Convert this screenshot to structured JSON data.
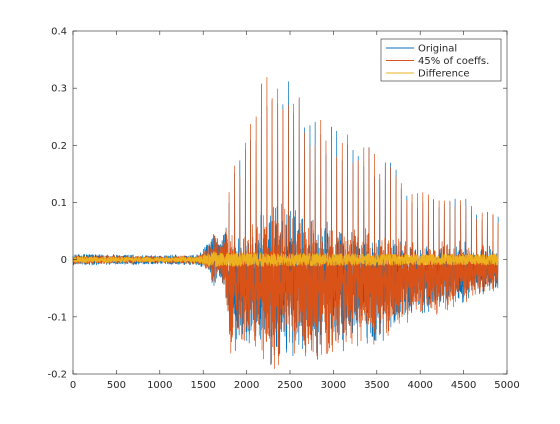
{
  "chart_data": {
    "type": "line",
    "title": "",
    "xlabel": "",
    "ylabel": "",
    "xlim": [
      0,
      5000
    ],
    "ylim": [
      -0.2,
      0.4
    ],
    "x_ticks": [
      0,
      500,
      1000,
      1500,
      2000,
      2500,
      3000,
      3500,
      4000,
      4500,
      5000
    ],
    "y_ticks": [
      -0.2,
      -0.1,
      0,
      0.1,
      0.2,
      0.3,
      0.4
    ],
    "x_tick_labels": [
      "0",
      "500",
      "1000",
      "1500",
      "2000",
      "2500",
      "3000",
      "3500",
      "4000",
      "4500",
      "5000"
    ],
    "y_tick_labels": [
      "-0.2",
      "-0.1",
      "0",
      "0.1",
      "0.2",
      "0.3",
      "0.4"
    ],
    "grid": false,
    "legend_position": "top-right",
    "samples": 4900,
    "series": [
      {
        "name": "Original",
        "color": "#0072BD",
        "envelope": {
          "x": [
            0,
            1000,
            1450,
            1560,
            1620,
            1700,
            1780,
            1820,
            1900,
            2000,
            2100,
            2200,
            2280,
            2400,
            2500,
            2700,
            2900,
            3100,
            3300,
            3500,
            3700,
            3900,
            4100,
            4300,
            4500,
            4700,
            4880
          ],
          "max": [
            0.01,
            0.008,
            0.01,
            0.03,
            0.05,
            0.03,
            0.07,
            0.19,
            0.17,
            0.22,
            0.26,
            0.33,
            0.37,
            0.35,
            0.33,
            0.26,
            0.24,
            0.23,
            0.22,
            0.18,
            0.17,
            0.12,
            0.12,
            0.12,
            0.11,
            0.09,
            0.08
          ],
          "min": [
            -0.01,
            -0.008,
            -0.01,
            -0.02,
            -0.05,
            -0.03,
            -0.09,
            -0.16,
            -0.14,
            -0.14,
            -0.14,
            -0.15,
            -0.15,
            -0.15,
            -0.14,
            -0.14,
            -0.15,
            -0.14,
            -0.13,
            -0.13,
            -0.12,
            -0.1,
            -0.09,
            -0.08,
            -0.07,
            -0.05,
            -0.05
          ]
        }
      },
      {
        "name": "45% of coeffs.",
        "color": "#D95319",
        "envelope": {
          "x": [
            0,
            1000,
            1450,
            1560,
            1620,
            1700,
            1780,
            1820,
            1900,
            2000,
            2100,
            2200,
            2280,
            2400,
            2500,
            2700,
            2900,
            3100,
            3300,
            3500,
            3700,
            3900,
            4100,
            4300,
            4500,
            4700,
            4880
          ],
          "max": [
            0.008,
            0.006,
            0.008,
            0.025,
            0.045,
            0.025,
            0.065,
            0.19,
            0.17,
            0.22,
            0.26,
            0.33,
            0.375,
            0.35,
            0.33,
            0.26,
            0.24,
            0.23,
            0.22,
            0.18,
            0.17,
            0.12,
            0.12,
            0.12,
            0.11,
            0.09,
            0.08
          ],
          "min": [
            -0.008,
            -0.006,
            -0.008,
            -0.02,
            -0.045,
            -0.025,
            -0.085,
            -0.16,
            -0.14,
            -0.14,
            -0.14,
            -0.15,
            -0.15,
            -0.15,
            -0.14,
            -0.14,
            -0.15,
            -0.14,
            -0.13,
            -0.13,
            -0.12,
            -0.1,
            -0.09,
            -0.08,
            -0.07,
            -0.05,
            -0.05
          ]
        }
      },
      {
        "name": "Difference",
        "color": "#EDB120",
        "envelope": {
          "x": [
            0,
            1000,
            1450,
            1560,
            1620,
            1700,
            1800,
            2000,
            2300,
            2600,
            3000,
            3400,
            3800,
            4200,
            4600,
            4880
          ],
          "max": [
            0.006,
            0.004,
            0.006,
            0.012,
            0.015,
            0.012,
            0.012,
            0.013,
            0.012,
            0.012,
            0.011,
            0.011,
            0.01,
            0.01,
            0.01,
            0.01
          ],
          "min": [
            -0.006,
            -0.004,
            -0.006,
            -0.012,
            -0.015,
            -0.012,
            -0.012,
            -0.013,
            -0.012,
            -0.012,
            -0.011,
            -0.011,
            -0.01,
            -0.01,
            -0.01,
            -0.01
          ]
        }
      }
    ]
  }
}
